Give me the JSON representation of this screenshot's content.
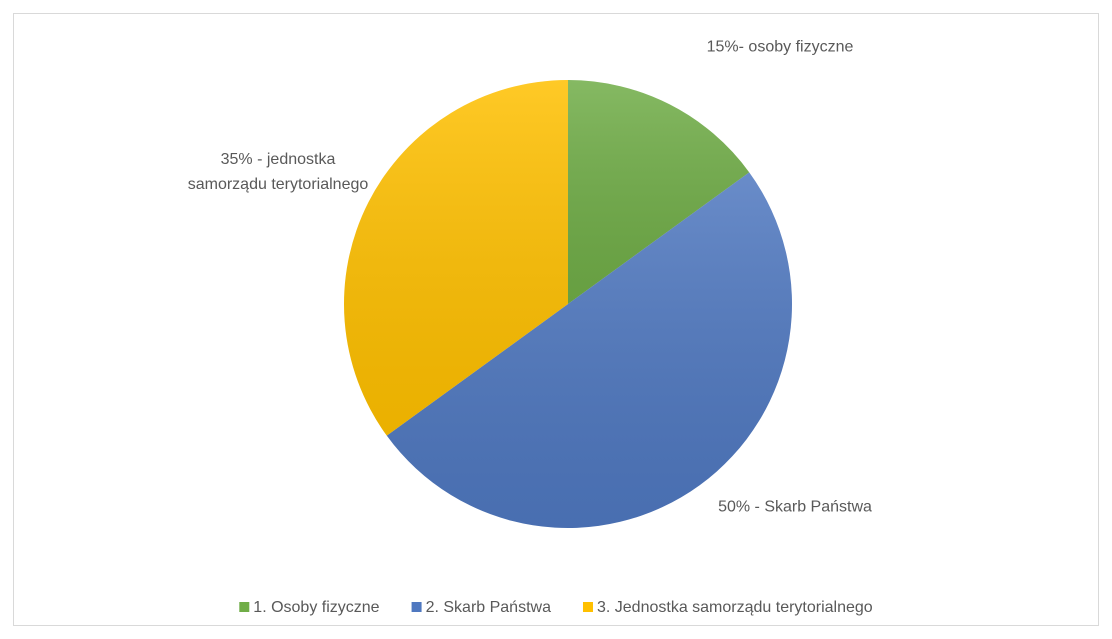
{
  "chart_data": {
    "type": "pie",
    "categories": [
      "1. Osoby fizyczne",
      "2. Skarb Państwa",
      "3. Jednostka samorządu terytorialnego"
    ],
    "values": [
      15,
      50,
      35
    ],
    "value_labels": [
      "15%- osoby fizyczne",
      "50% - Skarb Państwa",
      "35% - jednostka samorządu terytorialnego"
    ],
    "colors": [
      "#70ad47",
      "#4f78c0",
      "#ffc000"
    ],
    "legend": "bottom"
  }
}
